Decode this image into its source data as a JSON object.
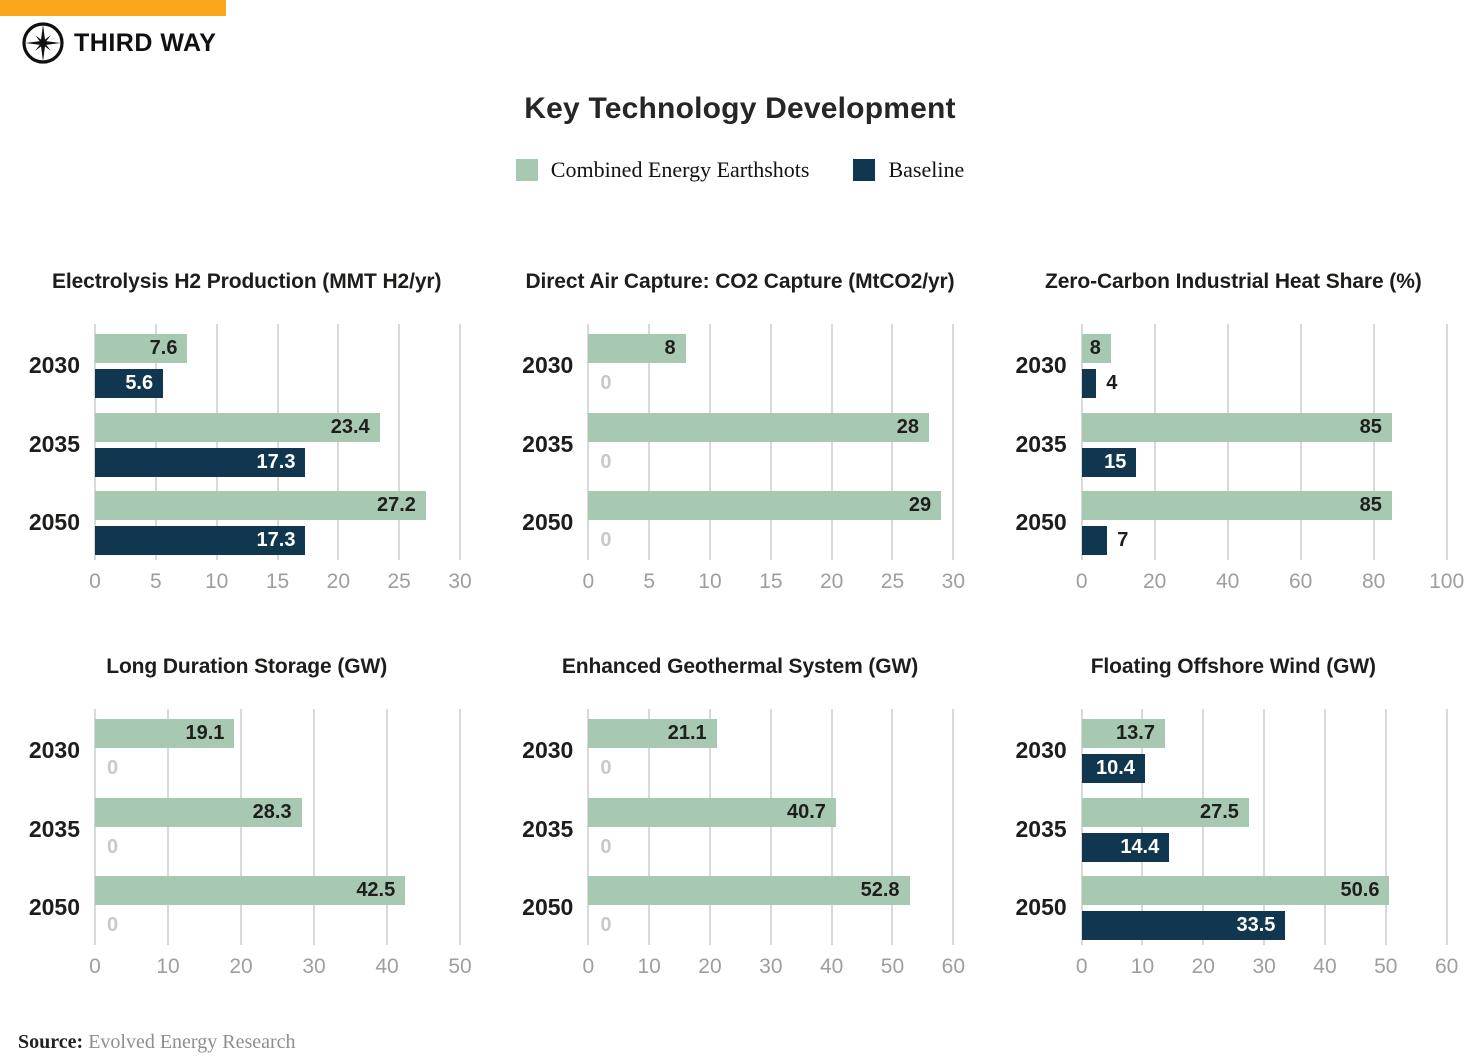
{
  "brand": {
    "name": "THIRD WAY",
    "logo_icon": "compass-star-icon"
  },
  "title": "Key Technology Development",
  "legend": [
    {
      "label": "Combined Energy Earthshots",
      "color": "#A7C9B1"
    },
    {
      "label": "Baseline",
      "color": "#10374F"
    }
  ],
  "source": {
    "label": "Source:",
    "text": "Evolved Energy Research"
  },
  "colors": {
    "orange": "#F9A61B",
    "earthshots": "#A7C9B1",
    "baseline": "#10374F",
    "gridline": "#D9D9D9",
    "tick_text": "#9E9E9E",
    "zero_text": "#C9C9C9",
    "value_dark": "#1E1E1C",
    "value_light": "#FFFFFF",
    "year_text": "#1D1D1B"
  },
  "chart_data": [
    {
      "type": "bar",
      "orientation": "horizontal",
      "title": "Electrolysis H2 Production (MMT H2/yr)",
      "categories": [
        "2030",
        "2035",
        "2050"
      ],
      "series": [
        {
          "name": "Combined Energy Earthshots",
          "values": [
            7.6,
            23.4,
            27.2
          ]
        },
        {
          "name": "Baseline",
          "values": [
            5.6,
            17.3,
            17.3
          ]
        }
      ],
      "xlim": [
        0,
        30
      ],
      "ticks": [
        0,
        5,
        10,
        15,
        20,
        25,
        30
      ],
      "grid": true,
      "xlabel": "",
      "ylabel": ""
    },
    {
      "type": "bar",
      "orientation": "horizontal",
      "title": "Direct Air Capture: CO2 Capture (MtCO2/yr)",
      "categories": [
        "2030",
        "2035",
        "2050"
      ],
      "series": [
        {
          "name": "Combined Energy Earthshots",
          "values": [
            8,
            28,
            29
          ]
        },
        {
          "name": "Baseline",
          "values": [
            0,
            0,
            0
          ]
        }
      ],
      "xlim": [
        0,
        30
      ],
      "ticks": [
        0,
        5,
        10,
        15,
        20,
        25,
        30
      ],
      "grid": true,
      "xlabel": "",
      "ylabel": ""
    },
    {
      "type": "bar",
      "orientation": "horizontal",
      "title": "Zero-Carbon Industrial Heat Share (%)",
      "categories": [
        "2030",
        "2035",
        "2050"
      ],
      "series": [
        {
          "name": "Combined Energy Earthshots",
          "values": [
            8,
            85,
            85
          ]
        },
        {
          "name": "Baseline",
          "values": [
            4,
            15,
            7
          ]
        }
      ],
      "xlim": [
        0,
        100
      ],
      "ticks": [
        0,
        20,
        40,
        60,
        80,
        100
      ],
      "grid": true,
      "xlabel": "",
      "ylabel": ""
    },
    {
      "type": "bar",
      "orientation": "horizontal",
      "title": "Long Duration Storage (GW)",
      "categories": [
        "2030",
        "2035",
        "2050"
      ],
      "series": [
        {
          "name": "Combined Energy Earthshots",
          "values": [
            19.1,
            28.3,
            42.5
          ]
        },
        {
          "name": "Baseline",
          "values": [
            0,
            0,
            0
          ]
        }
      ],
      "xlim": [
        0,
        50
      ],
      "ticks": [
        0,
        10,
        20,
        30,
        40,
        50
      ],
      "grid": true,
      "xlabel": "",
      "ylabel": ""
    },
    {
      "type": "bar",
      "orientation": "horizontal",
      "title": "Enhanced Geothermal System (GW)",
      "categories": [
        "2030",
        "2035",
        "2050"
      ],
      "series": [
        {
          "name": "Combined Energy Earthshots",
          "values": [
            21.1,
            40.7,
            52.8
          ]
        },
        {
          "name": "Baseline",
          "values": [
            0,
            0,
            0
          ]
        }
      ],
      "xlim": [
        0,
        60
      ],
      "ticks": [
        0,
        10,
        20,
        30,
        40,
        50,
        60
      ],
      "grid": true,
      "xlabel": "",
      "ylabel": ""
    },
    {
      "type": "bar",
      "orientation": "horizontal",
      "title": "Floating Offshore Wind (GW)",
      "categories": [
        "2030",
        "2035",
        "2050"
      ],
      "series": [
        {
          "name": "Combined Energy Earthshots",
          "values": [
            13.7,
            27.5,
            50.6
          ]
        },
        {
          "name": "Baseline",
          "values": [
            10.4,
            14.4,
            33.5
          ]
        }
      ],
      "xlim": [
        0,
        60
      ],
      "ticks": [
        0,
        10,
        20,
        30,
        40,
        50,
        60
      ],
      "grid": true,
      "xlabel": "",
      "ylabel": ""
    }
  ]
}
